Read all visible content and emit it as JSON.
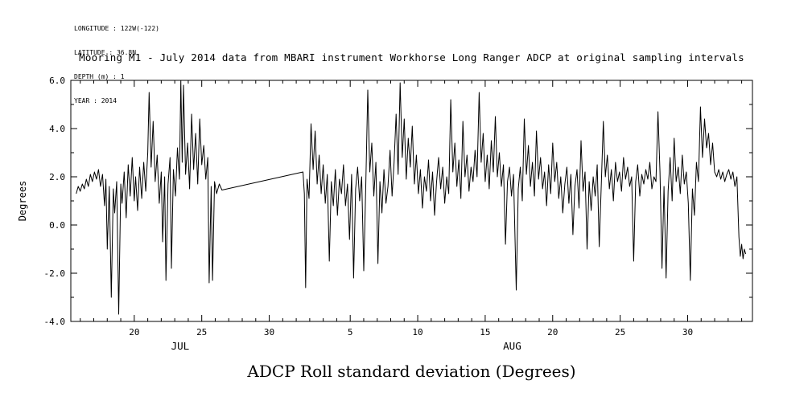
{
  "meta": {
    "lines": [
      "LONGITUDE : 122W(-122)",
      "LATITUDE : 36.8N",
      "DEPTH (m) : 1",
      "YEAR : 2014"
    ]
  },
  "title": "Mooring M1 - July 2014 data from MBARI instrument Workhorse Long Ranger ADCP at original sampling intervals",
  "bottom_title": "ADCP Roll standard deviation (Degrees)",
  "chart_data": {
    "type": "line",
    "title": "Mooring M1 - July 2014 data from MBARI instrument Workhorse Long Ranger ADCP at original sampling intervals",
    "ylabel": "Degrees",
    "ylim": [
      -4.0,
      6.0
    ],
    "x_unit": "day number relative to July 2014 (Aug N = 31 + N); data gap between day 26.5 and 32.5 drawn as connecting line",
    "xlim_days": [
      15.3,
      65.8
    ],
    "line_color": "#000000",
    "grid": "off",
    "legend": "none",
    "y_major_ticks": [
      {
        "v": -4.0,
        "label": "-4.0"
      },
      {
        "v": -2.0,
        "label": "-2.0"
      },
      {
        "v": 0.0,
        "label": "0.0"
      },
      {
        "v": 2.0,
        "label": "2.0"
      },
      {
        "v": 4.0,
        "label": "4.0"
      },
      {
        "v": 6.0,
        "label": "6.0"
      }
    ],
    "y_minor_values": [
      -3,
      -1,
      1,
      3,
      5
    ],
    "x_major_ticks": [
      {
        "day": 20,
        "label": "20"
      },
      {
        "day": 25,
        "label": "25"
      },
      {
        "day": 30,
        "label": "30"
      },
      {
        "day": 36,
        "label": "5"
      },
      {
        "day": 41,
        "label": "10"
      },
      {
        "day": 46,
        "label": "15"
      },
      {
        "day": 51,
        "label": "20"
      },
      {
        "day": 56,
        "label": "25"
      },
      {
        "day": 61,
        "label": "30"
      }
    ],
    "x_minor_range": [
      16,
      65
    ],
    "month_labels": [
      {
        "label": "JUL",
        "day": 23.4
      },
      {
        "label": "AUG",
        "day": 48.0
      }
    ],
    "series": [
      {
        "name": "ADCP Roll standard deviation (Degrees)",
        "points": [
          [
            15.7,
            1.3
          ],
          [
            15.85,
            1.6
          ],
          [
            16.0,
            1.4
          ],
          [
            16.15,
            1.7
          ],
          [
            16.3,
            1.5
          ],
          [
            16.45,
            1.9
          ],
          [
            16.6,
            1.6
          ],
          [
            16.75,
            2.1
          ],
          [
            16.9,
            1.8
          ],
          [
            17.05,
            2.2
          ],
          [
            17.2,
            1.9
          ],
          [
            17.35,
            2.3
          ],
          [
            17.5,
            1.6
          ],
          [
            17.65,
            2.1
          ],
          [
            17.8,
            0.8
          ],
          [
            17.9,
            1.9
          ],
          [
            18.0,
            -1.0
          ],
          [
            18.15,
            1.6
          ],
          [
            18.3,
            -3.0
          ],
          [
            18.45,
            1.5
          ],
          [
            18.55,
            0.5
          ],
          [
            18.7,
            1.8
          ],
          [
            18.85,
            -3.7
          ],
          [
            19.0,
            1.7
          ],
          [
            19.1,
            0.9
          ],
          [
            19.25,
            2.2
          ],
          [
            19.4,
            0.3
          ],
          [
            19.55,
            2.5
          ],
          [
            19.7,
            1.2
          ],
          [
            19.85,
            2.8
          ],
          [
            20.0,
            1.0
          ],
          [
            20.1,
            2.0
          ],
          [
            20.25,
            0.6
          ],
          [
            20.4,
            2.4
          ],
          [
            20.55,
            1.1
          ],
          [
            20.7,
            2.6
          ],
          [
            20.85,
            1.4
          ],
          [
            21.0,
            3.0
          ],
          [
            21.1,
            5.5
          ],
          [
            21.25,
            2.4
          ],
          [
            21.4,
            4.3
          ],
          [
            21.55,
            1.8
          ],
          [
            21.7,
            2.9
          ],
          [
            21.85,
            0.9
          ],
          [
            22.0,
            2.2
          ],
          [
            22.1,
            -0.7
          ],
          [
            22.25,
            2.0
          ],
          [
            22.35,
            -2.3
          ],
          [
            22.5,
            1.7
          ],
          [
            22.65,
            2.8
          ],
          [
            22.75,
            -1.8
          ],
          [
            22.9,
            2.3
          ],
          [
            23.05,
            1.2
          ],
          [
            23.2,
            3.2
          ],
          [
            23.35,
            1.9
          ],
          [
            23.45,
            6.0
          ],
          [
            23.55,
            2.6
          ],
          [
            23.65,
            5.8
          ],
          [
            23.8,
            2.1
          ],
          [
            23.95,
            3.4
          ],
          [
            24.1,
            1.5
          ],
          [
            24.25,
            4.6
          ],
          [
            24.4,
            2.3
          ],
          [
            24.55,
            3.8
          ],
          [
            24.7,
            1.7
          ],
          [
            24.85,
            4.4
          ],
          [
            25.0,
            2.5
          ],
          [
            25.15,
            3.3
          ],
          [
            25.3,
            1.9
          ],
          [
            25.45,
            2.8
          ],
          [
            25.55,
            -2.4
          ],
          [
            25.7,
            1.6
          ],
          [
            25.8,
            -2.3
          ],
          [
            25.95,
            1.8
          ],
          [
            26.1,
            1.3
          ],
          [
            26.3,
            1.7
          ],
          [
            26.5,
            1.45
          ],
          [
            32.5,
            2.2
          ],
          [
            32.6,
            1.3
          ],
          [
            32.7,
            -2.6
          ],
          [
            32.8,
            1.9
          ],
          [
            32.95,
            1.1
          ],
          [
            33.1,
            4.2
          ],
          [
            33.25,
            2.3
          ],
          [
            33.4,
            3.9
          ],
          [
            33.55,
            1.7
          ],
          [
            33.7,
            2.9
          ],
          [
            33.85,
            1.3
          ],
          [
            34.0,
            2.5
          ],
          [
            34.15,
            0.9
          ],
          [
            34.3,
            2.1
          ],
          [
            34.45,
            -1.5
          ],
          [
            34.6,
            1.8
          ],
          [
            34.75,
            0.8
          ],
          [
            34.9,
            2.3
          ],
          [
            35.05,
            0.4
          ],
          [
            35.2,
            1.9
          ],
          [
            35.35,
            1.3
          ],
          [
            35.5,
            2.5
          ],
          [
            35.65,
            0.8
          ],
          [
            35.8,
            1.7
          ],
          [
            35.95,
            -0.6
          ],
          [
            36.1,
            2.1
          ],
          [
            36.25,
            -2.2
          ],
          [
            36.4,
            1.5
          ],
          [
            36.55,
            2.4
          ],
          [
            36.7,
            1.0
          ],
          [
            36.85,
            2.0
          ],
          [
            37.0,
            -1.9
          ],
          [
            37.15,
            1.6
          ],
          [
            37.3,
            5.6
          ],
          [
            37.45,
            2.2
          ],
          [
            37.6,
            3.4
          ],
          [
            37.75,
            1.2
          ],
          [
            37.9,
            2.6
          ],
          [
            38.05,
            -1.6
          ],
          [
            38.2,
            1.8
          ],
          [
            38.35,
            0.5
          ],
          [
            38.5,
            2.3
          ],
          [
            38.65,
            0.9
          ],
          [
            38.8,
            1.6
          ],
          [
            38.95,
            3.1
          ],
          [
            39.1,
            1.2
          ],
          [
            39.25,
            2.6
          ],
          [
            39.4,
            4.6
          ],
          [
            39.55,
            2.1
          ],
          [
            39.7,
            5.9
          ],
          [
            39.85,
            2.8
          ],
          [
            40.0,
            4.4
          ],
          [
            40.15,
            1.9
          ],
          [
            40.3,
            3.6
          ],
          [
            40.45,
            2.4
          ],
          [
            40.6,
            4.1
          ],
          [
            40.75,
            1.7
          ],
          [
            40.9,
            2.9
          ],
          [
            41.05,
            1.3
          ],
          [
            41.2,
            2.3
          ],
          [
            41.35,
            0.7
          ],
          [
            41.5,
            2.0
          ],
          [
            41.65,
            1.4
          ],
          [
            41.8,
            2.7
          ],
          [
            41.95,
            1.0
          ],
          [
            42.1,
            2.2
          ],
          [
            42.25,
            0.4
          ],
          [
            42.4,
            1.8
          ],
          [
            42.55,
            2.8
          ],
          [
            42.7,
            1.5
          ],
          [
            42.85,
            2.4
          ],
          [
            43.0,
            0.9
          ],
          [
            43.15,
            2.0
          ],
          [
            43.3,
            1.3
          ],
          [
            43.45,
            5.2
          ],
          [
            43.6,
            2.2
          ],
          [
            43.75,
            3.4
          ],
          [
            43.9,
            1.6
          ],
          [
            44.05,
            2.7
          ],
          [
            44.2,
            1.1
          ],
          [
            44.35,
            4.3
          ],
          [
            44.5,
            2.0
          ],
          [
            44.65,
            2.9
          ],
          [
            44.8,
            1.4
          ],
          [
            44.95,
            2.4
          ],
          [
            45.1,
            1.8
          ],
          [
            45.25,
            3.1
          ],
          [
            45.4,
            2.0
          ],
          [
            45.55,
            5.5
          ],
          [
            45.7,
            2.6
          ],
          [
            45.85,
            3.8
          ],
          [
            46.0,
            1.8
          ],
          [
            46.15,
            2.9
          ],
          [
            46.3,
            1.5
          ],
          [
            46.45,
            3.5
          ],
          [
            46.6,
            2.2
          ],
          [
            46.75,
            4.5
          ],
          [
            46.9,
            2.0
          ],
          [
            47.05,
            3.0
          ],
          [
            47.2,
            1.6
          ],
          [
            47.35,
            2.5
          ],
          [
            47.5,
            -0.8
          ],
          [
            47.65,
            1.8
          ],
          [
            47.8,
            2.4
          ],
          [
            47.95,
            1.2
          ],
          [
            48.1,
            2.1
          ],
          [
            48.3,
            -2.7
          ],
          [
            48.45,
            1.5
          ],
          [
            48.6,
            2.4
          ],
          [
            48.75,
            1.0
          ],
          [
            48.9,
            4.4
          ],
          [
            49.05,
            2.1
          ],
          [
            49.2,
            3.3
          ],
          [
            49.35,
            1.6
          ],
          [
            49.5,
            2.6
          ],
          [
            49.65,
            1.2
          ],
          [
            49.8,
            3.9
          ],
          [
            49.95,
            1.9
          ],
          [
            50.1,
            2.8
          ],
          [
            50.25,
            1.5
          ],
          [
            50.4,
            2.2
          ],
          [
            50.55,
            0.8
          ],
          [
            50.7,
            2.5
          ],
          [
            50.85,
            1.3
          ],
          [
            51.0,
            3.4
          ],
          [
            51.15,
            1.8
          ],
          [
            51.3,
            2.6
          ],
          [
            51.45,
            1.1
          ],
          [
            51.6,
            2.0
          ],
          [
            51.75,
            0.5
          ],
          [
            51.9,
            1.7
          ],
          [
            52.05,
            2.4
          ],
          [
            52.2,
            0.9
          ],
          [
            52.35,
            2.1
          ],
          [
            52.5,
            -0.4
          ],
          [
            52.65,
            1.6
          ],
          [
            52.8,
            2.3
          ],
          [
            52.95,
            0.7
          ],
          [
            53.1,
            3.5
          ],
          [
            53.25,
            1.4
          ],
          [
            53.4,
            2.2
          ],
          [
            53.55,
            -1.0
          ],
          [
            53.7,
            1.8
          ],
          [
            53.85,
            0.6
          ],
          [
            54.0,
            2.0
          ],
          [
            54.15,
            1.2
          ],
          [
            54.3,
            2.5
          ],
          [
            54.45,
            -0.9
          ],
          [
            54.6,
            1.7
          ],
          [
            54.75,
            4.3
          ],
          [
            54.9,
            2.0
          ],
          [
            55.05,
            2.9
          ],
          [
            55.2,
            1.5
          ],
          [
            55.35,
            2.3
          ],
          [
            55.5,
            1.0
          ],
          [
            55.65,
            2.6
          ],
          [
            55.8,
            1.8
          ],
          [
            55.95,
            2.2
          ],
          [
            56.1,
            1.4
          ],
          [
            56.25,
            2.8
          ],
          [
            56.4,
            1.9
          ],
          [
            56.55,
            2.4
          ],
          [
            56.7,
            1.6
          ],
          [
            56.85,
            2.0
          ],
          [
            57.0,
            -1.5
          ],
          [
            57.15,
            1.8
          ],
          [
            57.3,
            2.5
          ],
          [
            57.45,
            1.2
          ],
          [
            57.6,
            2.1
          ],
          [
            57.75,
            1.7
          ],
          [
            57.9,
            2.3
          ],
          [
            58.05,
            1.9
          ],
          [
            58.2,
            2.6
          ],
          [
            58.35,
            1.5
          ],
          [
            58.5,
            2.0
          ],
          [
            58.65,
            1.8
          ],
          [
            58.8,
            4.7
          ],
          [
            58.95,
            2.2
          ],
          [
            59.1,
            -1.8
          ],
          [
            59.25,
            1.6
          ],
          [
            59.4,
            -2.2
          ],
          [
            59.55,
            1.4
          ],
          [
            59.7,
            2.8
          ],
          [
            59.85,
            1.0
          ],
          [
            60.0,
            3.6
          ],
          [
            60.15,
            1.8
          ],
          [
            60.3,
            2.4
          ],
          [
            60.45,
            1.3
          ],
          [
            60.6,
            2.9
          ],
          [
            60.75,
            1.7
          ],
          [
            60.9,
            2.2
          ],
          [
            61.05,
            0.9
          ],
          [
            61.2,
            -2.3
          ],
          [
            61.35,
            1.5
          ],
          [
            61.5,
            0.4
          ],
          [
            61.65,
            2.6
          ],
          [
            61.8,
            1.8
          ],
          [
            61.95,
            4.9
          ],
          [
            62.1,
            2.8
          ],
          [
            62.25,
            4.4
          ],
          [
            62.4,
            3.2
          ],
          [
            62.55,
            3.8
          ],
          [
            62.7,
            2.5
          ],
          [
            62.85,
            3.4
          ],
          [
            63.0,
            2.2
          ],
          [
            63.15,
            2.0
          ],
          [
            63.3,
            2.3
          ],
          [
            63.45,
            1.9
          ],
          [
            63.6,
            2.2
          ],
          [
            63.75,
            1.8
          ],
          [
            63.9,
            2.1
          ],
          [
            64.05,
            2.3
          ],
          [
            64.2,
            1.9
          ],
          [
            64.35,
            2.2
          ],
          [
            64.5,
            1.6
          ],
          [
            64.65,
            2.0
          ],
          [
            64.8,
            -0.5
          ],
          [
            64.9,
            -1.3
          ],
          [
            65.0,
            -0.8
          ],
          [
            65.1,
            -1.4
          ],
          [
            65.2,
            -1.0
          ],
          [
            65.3,
            -1.2
          ]
        ]
      }
    ]
  }
}
